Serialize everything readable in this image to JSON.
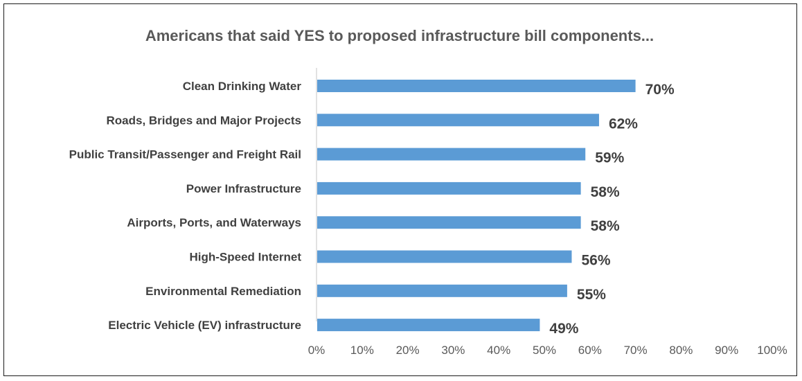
{
  "chart_data": {
    "type": "bar",
    "orientation": "horizontal",
    "title": "Americans that said YES to proposed infrastructure bill components...",
    "categories": [
      "Clean Drinking Water",
      "Roads, Bridges and Major Projects",
      "Public Transit/Passenger and Freight Rail",
      "Power Infrastructure",
      "Airports, Ports, and Waterways",
      "High-Speed Internet",
      "Environmental Remediation",
      "Electric Vehicle (EV) infrastructure"
    ],
    "values": [
      70,
      62,
      59,
      58,
      58,
      56,
      55,
      49
    ],
    "data_labels": [
      "70%",
      "62%",
      "59%",
      "58%",
      "58%",
      "56%",
      "55%",
      "49%"
    ],
    "xlim": [
      0,
      100
    ],
    "x_ticks": [
      "0%",
      "10%",
      "20%",
      "30%",
      "40%",
      "50%",
      "60%",
      "70%",
      "80%",
      "90%",
      "100%"
    ],
    "xlabel": "",
    "ylabel": "",
    "grid": false,
    "legend": false,
    "bar_color": "#5b9bd5"
  }
}
